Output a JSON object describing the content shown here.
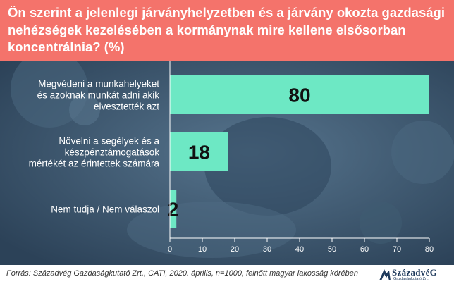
{
  "title": "Ön szerint a jelenlegi járványhelyzetben és a járvány okozta gazdasági nehézségek kezelésében a kormánynak mire kellene elsősorban koncentrálnia? (%)",
  "chart_data": {
    "type": "bar",
    "orientation": "horizontal",
    "categories": [
      [
        "Megvédeni a munkahelyeket",
        "és azoknak munkát adni akik",
        "elvesztették azt"
      ],
      [
        "Növelni a segélyek és a",
        "készpénztámogatások",
        "mértékét az érintettek számára"
      ],
      [
        "Nem tudja / Nem válaszol"
      ]
    ],
    "values": [
      80,
      18,
      2
    ],
    "xlim": [
      0,
      80
    ],
    "xticks": [
      0,
      10,
      20,
      30,
      40,
      50,
      60,
      70,
      80
    ],
    "bar_color": "#6de8c4",
    "grid": false
  },
  "footer": {
    "source": "Forrás: Századvég Gazdaságkutató Zrt., CATI, 2020. április, n=1000, felnőtt magyar lakosság körében",
    "logo_name": "SzázadvéG",
    "logo_sub": "Gazdaságkutató Zrt."
  },
  "colors": {
    "header": "#f4736b",
    "background": "#3d5a72",
    "bar": "#6de8c4",
    "axis": "#ffffff"
  }
}
